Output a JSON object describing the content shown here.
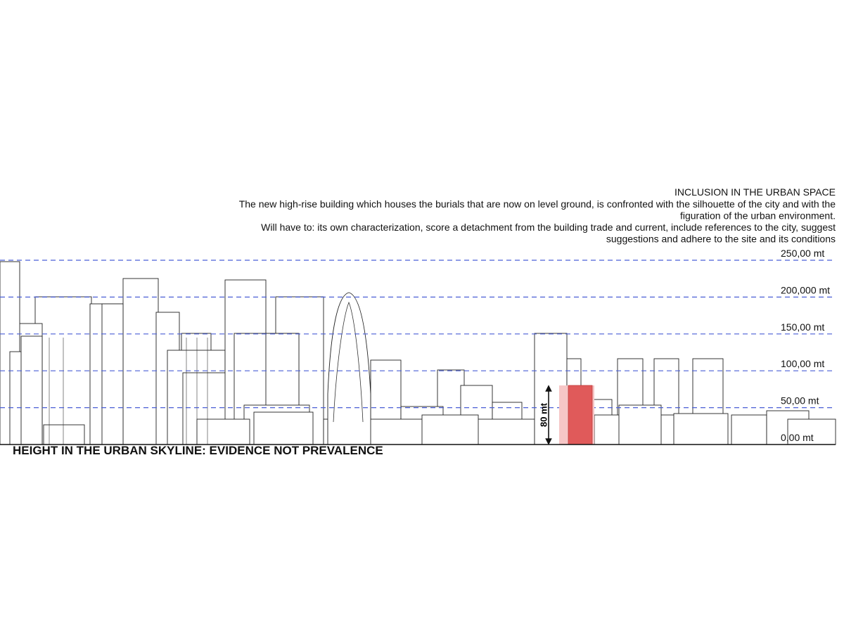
{
  "header": {
    "title": "INCLUSION IN THE URBAN SPACE",
    "lines": [
      "The new high-rise building which houses the burials that are now on level ground, is confronted with the silhouette of the city and with the",
      "figuration of the urban environment.",
      "Will have to: its own characterization, score a detachment from the building trade and current,  include references to the city, suggest",
      "suggestions and adhere to the site and its conditions"
    ]
  },
  "levels": [
    "250,00 mt",
    "200,000 mt",
    "150,00 mt",
    "100,00 mt",
    "50,00 mt",
    "0,00 mt"
  ],
  "dimension": {
    "label": "80 mt"
  },
  "caption": "HEIGHT IN THE URBAN SKYLINE: EVIDENCE NOT PREVALENCE"
}
